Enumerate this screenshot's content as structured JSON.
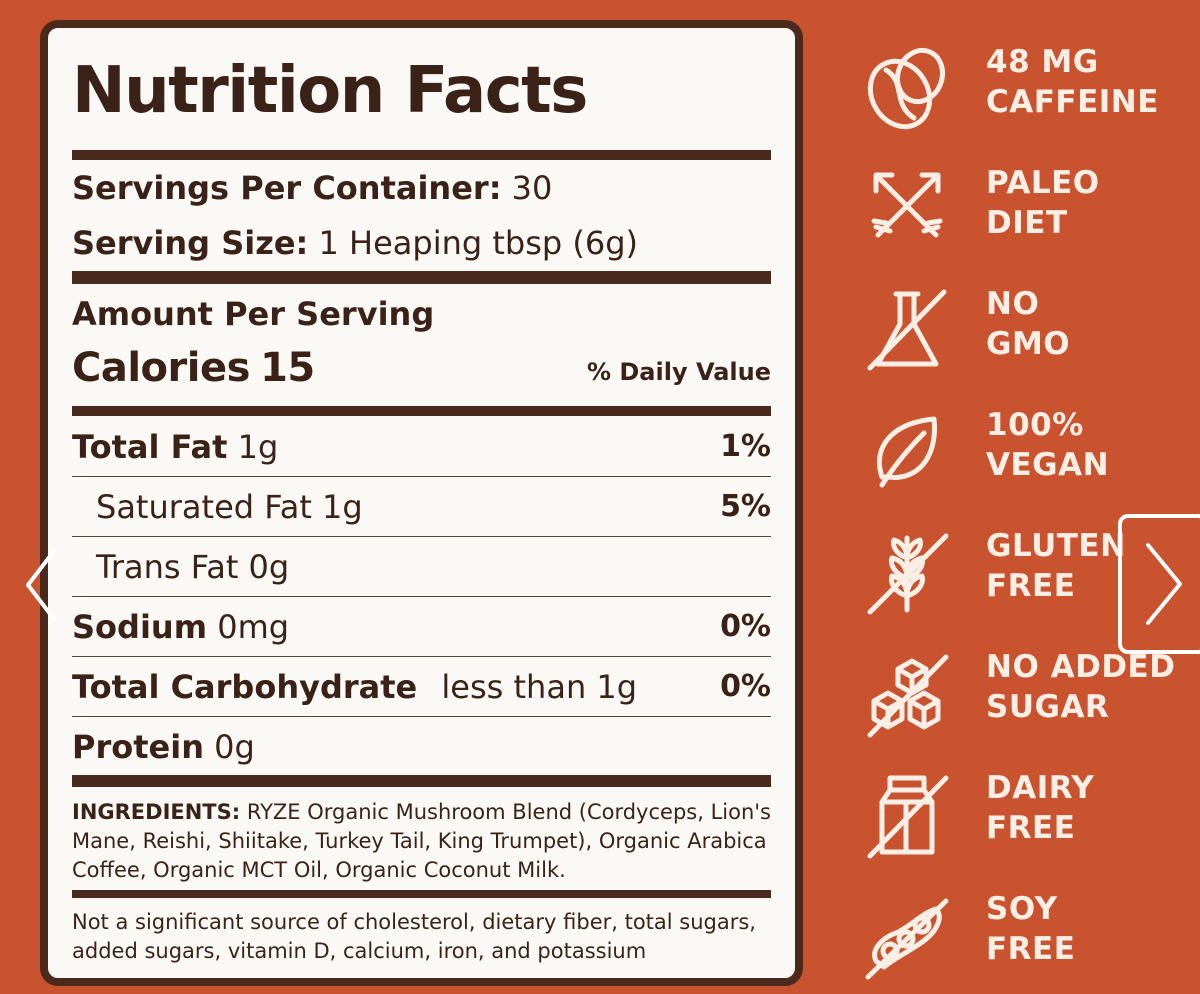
{
  "label": {
    "title": "Nutrition Facts",
    "servings_per_container_label": "Servings Per Container:",
    "servings_per_container_value": "30",
    "serving_size_label": "Serving Size:",
    "serving_size_value": "1 Heaping tbsp (6g)",
    "amount_per_serving": "Amount Per Serving",
    "calories_label": "Calories",
    "calories_value": "15",
    "daily_value_header": "% Daily Value",
    "rows": [
      {
        "name": "Total Fat",
        "amount": "1g",
        "dv": "1%"
      },
      {
        "name": "Saturated Fat",
        "amount": "1g",
        "dv": "5%"
      },
      {
        "name": "Trans Fat",
        "amount": "0g",
        "dv": ""
      },
      {
        "name": "Sodium",
        "amount": "0mg",
        "dv": "0%"
      },
      {
        "name": "Total Carbohydrate",
        "amount": "less than 1g",
        "dv": "0%"
      },
      {
        "name": "Protein",
        "amount": "0g",
        "dv": ""
      }
    ],
    "ingredients_label": "INGREDIENTS:",
    "ingredients_text": "RYZE Organic Mushroom Blend (Cordyceps, Lion's Mane, Reishi, Shiitake, Turkey Tail, King Trumpet), Organic Arabica Coffee, Organic MCT Oil, Organic Coconut Milk.",
    "footnote": "Not a significant source of cholesterol, dietary fiber, total sugars, added sugars, vitamin D, calcium, iron, and potassium"
  },
  "badges": [
    {
      "line1": "48 MG",
      "line2": "CAFFEINE",
      "icon": "coffee-bean-icon"
    },
    {
      "line1": "PALEO",
      "line2": "DIET",
      "icon": "crossed-arrows-icon"
    },
    {
      "line1": "NO",
      "line2": "GMO",
      "icon": "flask-crossed-icon"
    },
    {
      "line1": "100%",
      "line2": "VEGAN",
      "icon": "leaf-icon"
    },
    {
      "line1": "GLUTEN",
      "line2": "FREE",
      "icon": "wheat-crossed-icon"
    },
    {
      "line1": "NO ADDED",
      "line2": "SUGAR",
      "icon": "sugar-cubes-crossed-icon"
    },
    {
      "line1": "DAIRY",
      "line2": "FREE",
      "icon": "milk-carton-crossed-icon"
    },
    {
      "line1": "SOY",
      "line2": "FREE",
      "icon": "soy-pod-crossed-icon"
    }
  ],
  "colors": {
    "background": "#c9522f",
    "label_bg": "#fbf9f6",
    "label_text": "#3b2218",
    "badge_text": "#fbeee4"
  },
  "navigation": {
    "prev_icon": "chevron-left-icon",
    "next_icon": "chevron-right-icon"
  }
}
